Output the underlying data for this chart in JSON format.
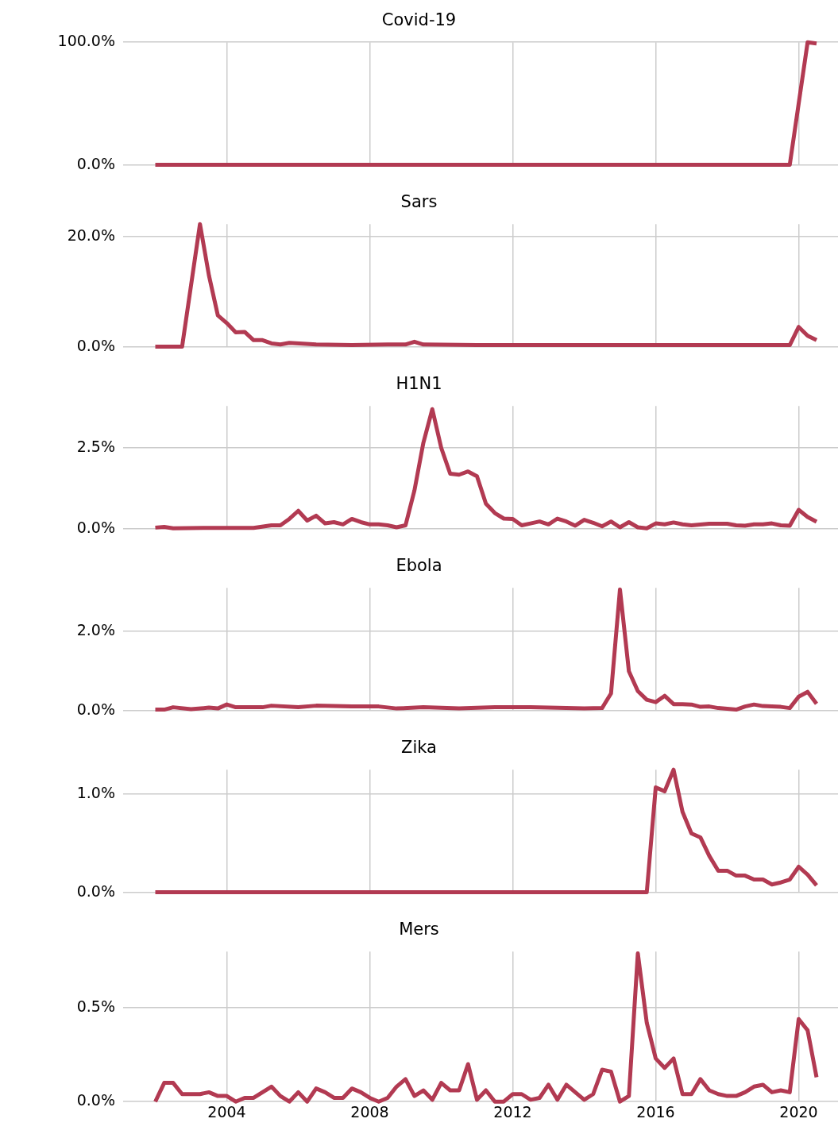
{
  "chart_data": [
    {
      "type": "line",
      "title": "Covid-19",
      "color": "#b23a52",
      "x": [
        2002,
        2019.75,
        2020,
        2020.25,
        2020.5
      ],
      "values": [
        0,
        0,
        50,
        100,
        99
      ],
      "xlim": [
        2001.1,
        2021.1
      ],
      "xticks": [
        2004,
        2008,
        2012,
        2016,
        2020
      ],
      "ylim": [
        0,
        100
      ],
      "yticks": [
        {
          "value": 0,
          "label": "0.0%"
        },
        {
          "value": 100,
          "label": "100.0%"
        }
      ],
      "grid": true,
      "tick_labels": "y"
    },
    {
      "type": "line",
      "title": "Sars",
      "color": "#b23a52",
      "x": [
        2002,
        2002.25,
        2002.5,
        2002.75,
        2003.25,
        2003.5,
        2003.75,
        2004,
        2004.25,
        2004.5,
        2004.75,
        2005,
        2005.25,
        2005.5,
        2005.75,
        2006.5,
        2007.5,
        2008.5,
        2009,
        2009.25,
        2009.5,
        2011,
        2013,
        2015,
        2017,
        2019.75,
        2020,
        2020.25,
        2020.5
      ],
      "values": [
        0,
        0,
        0,
        0,
        22.3,
        13,
        5.7,
        4.3,
        2.6,
        2.7,
        1.2,
        1.2,
        0.6,
        0.4,
        0.7,
        0.4,
        0.3,
        0.4,
        0.4,
        0.9,
        0.4,
        0.3,
        0.3,
        0.3,
        0.3,
        0.3,
        3.6,
        2,
        1.2
      ],
      "xlim": [
        2001.1,
        2021.1
      ],
      "xticks": [
        2004,
        2008,
        2012,
        2016,
        2020
      ],
      "ylim": [
        0,
        22.3
      ],
      "yticks": [
        {
          "value": 0,
          "label": "0.0%"
        },
        {
          "value": 20,
          "label": "20.0%"
        }
      ],
      "grid": true,
      "tick_labels": "y"
    },
    {
      "type": "line",
      "title": "H1N1",
      "color": "#b23a52",
      "x": [
        2002,
        2002.25,
        2002.5,
        2003.5,
        2004.75,
        2005.25,
        2005.5,
        2005.75,
        2006,
        2006.25,
        2006.5,
        2006.75,
        2007,
        2007.25,
        2007.5,
        2007.75,
        2008,
        2008.25,
        2008.5,
        2008.75,
        2009,
        2009.25,
        2009.5,
        2009.75,
        2010,
        2010.25,
        2010.5,
        2010.75,
        2011,
        2011.25,
        2011.5,
        2011.75,
        2012,
        2012.25,
        2012.5,
        2012.75,
        2013,
        2013.25,
        2013.5,
        2013.75,
        2014,
        2014.25,
        2014.5,
        2014.75,
        2015,
        2015.25,
        2015.5,
        2015.75,
        2016,
        2016.25,
        2016.5,
        2016.75,
        2017,
        2017.5,
        2018,
        2018.25,
        2018.5,
        2018.75,
        2019,
        2019.25,
        2019.5,
        2019.75,
        2020,
        2020.25,
        2020.5
      ],
      "values": [
        0.03,
        0.05,
        0.01,
        0.02,
        0.02,
        0.1,
        0.1,
        0.3,
        0.55,
        0.25,
        0.4,
        0.16,
        0.2,
        0.13,
        0.3,
        0.2,
        0.13,
        0.13,
        0.1,
        0.04,
        0.1,
        1.18,
        2.66,
        3.7,
        2.5,
        1.7,
        1.67,
        1.77,
        1.62,
        0.77,
        0.48,
        0.31,
        0.3,
        0.1,
        0.16,
        0.22,
        0.13,
        0.31,
        0.22,
        0.09,
        0.27,
        0.18,
        0.07,
        0.22,
        0.04,
        0.2,
        0.04,
        0.01,
        0.16,
        0.13,
        0.19,
        0.13,
        0.1,
        0.15,
        0.15,
        0.1,
        0.09,
        0.13,
        0.13,
        0.16,
        0.1,
        0.09,
        0.58,
        0.36,
        0.21
      ],
      "xlim": [
        2001.1,
        2021.1
      ],
      "xticks": [
        2004,
        2008,
        2012,
        2016,
        2020
      ],
      "ylim": [
        0,
        3.8
      ],
      "yticks": [
        {
          "value": 0,
          "label": "0.0%"
        },
        {
          "value": 2.5,
          "label": "2.5%"
        }
      ],
      "grid": true,
      "tick_labels": "y"
    },
    {
      "type": "line",
      "title": "Ebola",
      "color": "#b23a52",
      "x": [
        2002,
        2002.25,
        2002.5,
        2003,
        2003.5,
        2003.75,
        2004,
        2004.25,
        2005,
        2005.25,
        2006,
        2006.5,
        2007.5,
        2008.25,
        2008.75,
        2009.5,
        2010.5,
        2011.5,
        2012.5,
        2013.5,
        2014,
        2014.5,
        2014.75,
        2015,
        2015.25,
        2015.5,
        2015.75,
        2016,
        2016.25,
        2016.5,
        2016.75,
        2017,
        2017.25,
        2017.5,
        2017.75,
        2018,
        2018.25,
        2018.5,
        2018.75,
        2019,
        2019.25,
        2019.5,
        2019.75,
        2020,
        2020.25,
        2020.5
      ],
      "values": [
        0.02,
        0.02,
        0.08,
        0.03,
        0.07,
        0.05,
        0.15,
        0.08,
        0.08,
        0.12,
        0.08,
        0.12,
        0.1,
        0.1,
        0.05,
        0.08,
        0.05,
        0.08,
        0.08,
        0.06,
        0.05,
        0.06,
        0.43,
        3.06,
        0.99,
        0.49,
        0.27,
        0.21,
        0.37,
        0.16,
        0.16,
        0.15,
        0.09,
        0.1,
        0.06,
        0.04,
        0.02,
        0.1,
        0.15,
        0.11,
        0.1,
        0.09,
        0.06,
        0.35,
        0.47,
        0.17
      ],
      "xlim": [
        2001.1,
        2021.1
      ],
      "xticks": [
        2004,
        2008,
        2012,
        2016,
        2020
      ],
      "ylim": [
        0,
        3.1
      ],
      "yticks": [
        {
          "value": 0,
          "label": "0.0%"
        },
        {
          "value": 2,
          "label": "2.0%"
        }
      ],
      "grid": true,
      "tick_labels": "y"
    },
    {
      "type": "line",
      "title": "Zika",
      "color": "#b23a52",
      "x": [
        2002,
        2015.75,
        2016,
        2016.25,
        2016.5,
        2016.75,
        2017,
        2017.25,
        2017.5,
        2017.75,
        2018,
        2018.25,
        2018.5,
        2018.75,
        2019,
        2019.25,
        2019.5,
        2019.75,
        2020,
        2020.25,
        2020.5
      ],
      "values": [
        0,
        0,
        1.07,
        1.03,
        1.25,
        0.82,
        0.6,
        0.56,
        0.37,
        0.22,
        0.22,
        0.17,
        0.17,
        0.13,
        0.13,
        0.08,
        0.1,
        0.13,
        0.26,
        0.18,
        0.07
      ],
      "xlim": [
        2001.1,
        2021.1
      ],
      "xticks": [
        2004,
        2008,
        2012,
        2016,
        2020
      ],
      "ylim": [
        0,
        1.25
      ],
      "yticks": [
        {
          "value": 0,
          "label": "0.0%"
        },
        {
          "value": 1,
          "label": "1.0%"
        }
      ],
      "grid": true,
      "tick_labels": "y"
    },
    {
      "type": "line",
      "title": "Mers",
      "color": "#b23a52",
      "x": [
        2002,
        2002.25,
        2002.5,
        2002.75,
        2003,
        2003.25,
        2003.5,
        2003.75,
        2004,
        2004.25,
        2004.5,
        2004.75,
        2005,
        2005.25,
        2005.5,
        2005.75,
        2006,
        2006.25,
        2006.5,
        2006.75,
        2007,
        2007.25,
        2007.5,
        2007.75,
        2008,
        2008.25,
        2008.5,
        2008.75,
        2009,
        2009.25,
        2009.5,
        2009.75,
        2010,
        2010.25,
        2010.5,
        2010.75,
        2011,
        2011.25,
        2011.5,
        2011.75,
        2012,
        2012.25,
        2012.5,
        2012.75,
        2013,
        2013.25,
        2013.5,
        2013.75,
        2014,
        2014.25,
        2014.5,
        2014.75,
        2015,
        2015.25,
        2015.5,
        2015.75,
        2016,
        2016.25,
        2016.5,
        2016.75,
        2017,
        2017.25,
        2017.5,
        2017.75,
        2018,
        2018.25,
        2018.5,
        2018.75,
        2019,
        2019.25,
        2019.5,
        2019.75,
        2020,
        2020.25,
        2020.5
      ],
      "values": [
        0,
        0.1,
        0.1,
        0.04,
        0.04,
        0.04,
        0.05,
        0.03,
        0.03,
        0,
        0.02,
        0.02,
        0.05,
        0.08,
        0.03,
        0,
        0.05,
        0,
        0.07,
        0.05,
        0.02,
        0.02,
        0.07,
        0.05,
        0.02,
        0,
        0.02,
        0.08,
        0.12,
        0.03,
        0.06,
        0.01,
        0.1,
        0.06,
        0.06,
        0.2,
        0.01,
        0.06,
        0,
        0,
        0.04,
        0.04,
        0.01,
        0.02,
        0.09,
        0.01,
        0.09,
        0.05,
        0.01,
        0.04,
        0.17,
        0.16,
        0,
        0.03,
        0.79,
        0.42,
        0.23,
        0.18,
        0.23,
        0.04,
        0.04,
        0.12,
        0.06,
        0.04,
        0.03,
        0.03,
        0.05,
        0.08,
        0.09,
        0.05,
        0.06,
        0.05,
        0.44,
        0.38,
        0.13
      ],
      "xlim": [
        2001.1,
        2021.1
      ],
      "xticks": [
        2004,
        2008,
        2012,
        2016,
        2020
      ],
      "ylim": [
        0,
        0.8
      ],
      "yticks": [
        {
          "value": 0,
          "label": "0.0%"
        },
        {
          "value": 0.5,
          "label": "0.5%"
        }
      ],
      "grid": true
    }
  ]
}
